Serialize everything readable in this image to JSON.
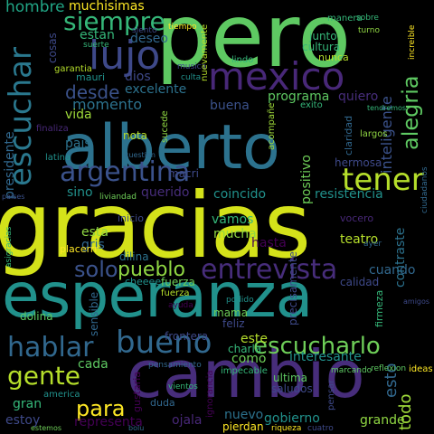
{
  "words": [
    {
      "text": "gracias",
      "color": "#d4e21a"
    },
    {
      "text": "esperanza",
      "color": "#21918c"
    },
    {
      "text": "alberto",
      "color": "#2c728e"
    },
    {
      "text": "pero",
      "color": "#5ec962"
    },
    {
      "text": "cambio",
      "color": "#472d7b"
    },
    {
      "text": "mexico",
      "color": "#482878"
    },
    {
      "text": "argentina",
      "color": "#3b528b"
    },
    {
      "text": "tener",
      "color": "#b5de2b"
    },
    {
      "text": "escuchar",
      "color": "#2a788e"
    },
    {
      "text": "lujo",
      "color": "#3e4989"
    },
    {
      "text": "siempre",
      "color": "#35b779"
    },
    {
      "text": "bueno",
      "color": "#31688e"
    },
    {
      "text": "hablar",
      "color": "#31688e"
    },
    {
      "text": "gente",
      "color": "#b5de2b"
    },
    {
      "text": "escucharlo",
      "color": "#6ece58"
    },
    {
      "text": "entrevista",
      "color": "#472d7b"
    },
    {
      "text": "pueblo",
      "color": "#90d743"
    },
    {
      "text": "solo",
      "color": "#3b528b"
    },
    {
      "text": "para",
      "color": "#fde725"
    },
    {
      "text": "alegria",
      "color": "#5ec962"
    },
    {
      "text": "desde",
      "color": "#3b528b"
    },
    {
      "text": "muchisimas",
      "color": "#fde725"
    },
    {
      "text": "hombre",
      "color": "#21a585"
    },
    {
      "text": "estan",
      "color": "#35b779"
    },
    {
      "text": "deseo",
      "color": "#31688e"
    },
    {
      "text": "momento",
      "color": "#2c728e"
    },
    {
      "text": "excelente",
      "color": "#2c728e"
    },
    {
      "text": "dios",
      "color": "#3e4989"
    },
    {
      "text": "buena",
      "color": "#3b528b"
    },
    {
      "text": "programa",
      "color": "#5ec962"
    },
    {
      "text": "quiero",
      "color": "#472d7b"
    },
    {
      "text": "inteligente",
      "color": "#3b528b"
    },
    {
      "text": "presidente",
      "color": "#31688e"
    },
    {
      "text": "vida",
      "color": "#9fda3a"
    },
    {
      "text": "pais",
      "color": "#2c728e"
    },
    {
      "text": "sino",
      "color": "#21918c"
    },
    {
      "text": "querido",
      "color": "#472d7b"
    },
    {
      "text": "coincido",
      "color": "#21918c"
    },
    {
      "text": "resistencia",
      "color": "#21918c"
    },
    {
      "text": "positivo",
      "color": "#6ece58"
    },
    {
      "text": "vamos",
      "color": "#35b779"
    },
    {
      "text": "esta",
      "color": "#90d743"
    },
    {
      "text": "gris",
      "color": "#31688e"
    },
    {
      "text": "mucha",
      "color": "#90d743"
    },
    {
      "text": "hasta",
      "color": "#440154"
    },
    {
      "text": "teatro",
      "color": "#b5de2b"
    },
    {
      "text": "cuando",
      "color": "#31688e"
    },
    {
      "text": "calidad",
      "color": "#3e4989"
    },
    {
      "text": "contraste",
      "color": "#2c728e"
    },
    {
      "text": "interesante",
      "color": "#21918c"
    },
    {
      "text": "este",
      "color": "#b5de2b"
    },
    {
      "text": "como",
      "color": "#6ece58"
    },
    {
      "text": "cada",
      "color": "#5ec962"
    },
    {
      "text": "gran",
      "color": "#35b779"
    },
    {
      "text": "estoy",
      "color": "#3e4989"
    },
    {
      "text": "representa",
      "color": "#440154"
    },
    {
      "text": "ojala",
      "color": "#482878"
    },
    {
      "text": "nuevo",
      "color": "#2c728e"
    },
    {
      "text": "gobierno",
      "color": "#21918c"
    },
    {
      "text": "grande",
      "color": "#90d743"
    },
    {
      "text": "todo",
      "color": "#9fda3a"
    },
    {
      "text": "esto",
      "color": "#31688e"
    },
    {
      "text": "ideas",
      "color": "#fde725"
    },
    {
      "text": "america",
      "color": "#21918c"
    },
    {
      "text": "frontera",
      "color": "#3e4989"
    },
    {
      "text": "macri",
      "color": "#3e4989"
    },
    {
      "text": "cultura",
      "color": "#35b779"
    },
    {
      "text": "junto",
      "color": "#35b779"
    },
    {
      "text": "nunca",
      "color": "#b5de2b"
    },
    {
      "text": "hermosa",
      "color": "#3e4989"
    },
    {
      "text": "nota",
      "color": "#b5de2b"
    },
    {
      "text": "fuerza",
      "color": "#6ece58"
    },
    {
      "text": "dilina",
      "color": "#2c728e"
    },
    {
      "text": "dolina",
      "color": "#5ec962"
    },
    {
      "text": "cheeee",
      "color": "#21918c"
    },
    {
      "text": "precisamente",
      "color": "#3e4989"
    },
    {
      "text": "sensible",
      "color": "#31688e"
    },
    {
      "text": "mama",
      "color": "#6ece58"
    },
    {
      "text": "feliz",
      "color": "#3e4989"
    },
    {
      "text": "charla",
      "color": "#35b779"
    },
    {
      "text": "ultima",
      "color": "#5ec962"
    },
    {
      "text": "saludos",
      "color": "#3e4989"
    },
    {
      "text": "pierdan",
      "color": "#fde725"
    },
    {
      "text": "duda",
      "color": "#31688e"
    },
    {
      "text": "manera",
      "color": "#35b779"
    },
    {
      "text": "fuerza",
      "color": "#b5de2b"
    },
    {
      "text": "largos",
      "color": "#90d743"
    },
    {
      "text": "finaliza",
      "color": "#482878"
    },
    {
      "text": "latina",
      "color": "#21918c"
    },
    {
      "text": "liviandad",
      "color": "#6ece58"
    },
    {
      "text": "placerrr",
      "color": "#fde725"
    },
    {
      "text": "lindo",
      "color": "#35b779"
    },
    {
      "text": "mauri",
      "color": "#21918c"
    },
    {
      "text": "cosas",
      "color": "#3e4989"
    },
    {
      "text": "garantia",
      "color": "#b5de2b"
    },
    {
      "text": "suerte",
      "color": "#35b779"
    },
    {
      "text": "siento",
      "color": "#3e4989"
    },
    {
      "text": "musica",
      "color": "#3e4989"
    },
    {
      "text": "culta",
      "color": "#21918c"
    },
    {
      "text": "exito",
      "color": "#35b779"
    },
    {
      "text": "tiempo",
      "color": "#fde725"
    },
    {
      "text": "sobre",
      "color": "#35b779"
    },
    {
      "text": "turno",
      "color": "#90d743"
    },
    {
      "text": "claridad",
      "color": "#31688e"
    },
    {
      "text": "vocero",
      "color": "#482878"
    },
    {
      "text": "inicio",
      "color": "#3e4989"
    },
    {
      "text": "nuevamente",
      "color": "#b5de2b"
    },
    {
      "text": "acompañe",
      "color": "#9fda3a"
    },
    {
      "text": "impecable",
      "color": "#35b779"
    },
    {
      "text": "pensamiento",
      "color": "#31688e"
    },
    {
      "text": "marcando",
      "color": "#5ec962"
    },
    {
      "text": "reflexion",
      "color": "#5ec962"
    },
    {
      "text": "gustaria",
      "color": "#440154"
    },
    {
      "text": "ignorancia",
      "color": "#440154"
    },
    {
      "text": "amigos",
      "color": "#3e4989"
    },
    {
      "text": "podido",
      "color": "#21918c"
    },
    {
      "text": "ayer",
      "color": "#31688e"
    },
    {
      "text": "firmeza",
      "color": "#35b779"
    },
    {
      "text": "sucede",
      "color": "#90d743"
    },
    {
      "text": "ayuda",
      "color": "#440154"
    },
    {
      "text": "vientos",
      "color": "#35b779"
    },
    {
      "text": "cuatro",
      "color": "#3e4989"
    },
    {
      "text": "estemos",
      "color": "#6ece58"
    },
    {
      "text": "riqueza",
      "color": "#fde725"
    },
    {
      "text": "increible",
      "color": "#fde725"
    },
    {
      "text": "ciudadanos",
      "color": "#31688e"
    },
    {
      "text": "bolu",
      "color": "#31688e"
    },
    {
      "text": "asigracias",
      "color": "#35b779"
    },
    {
      "text": "paises",
      "color": "#3b528b"
    },
    {
      "text": "cuestion",
      "color": "#31688e"
    },
    {
      "text": "tendremos",
      "color": "#35b779"
    },
    {
      "text": "pensar",
      "color": "#3e4989"
    }
  ]
}
